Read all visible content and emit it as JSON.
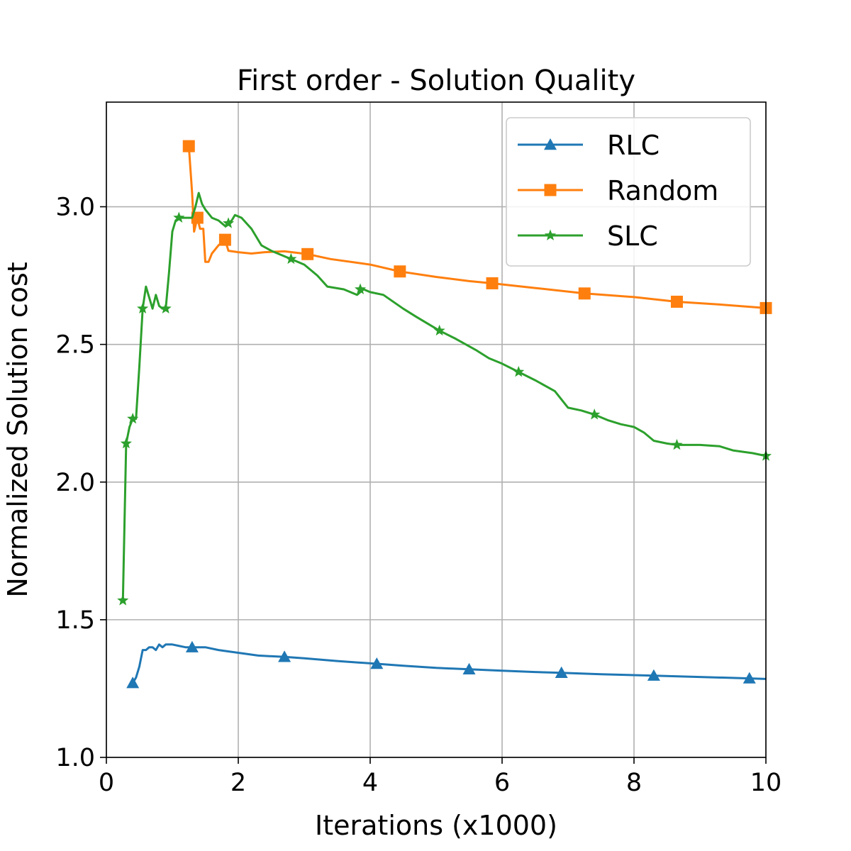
{
  "chart_data": {
    "type": "line",
    "title": "First order - Solution Quality",
    "xlabel": "Iterations (x1000)",
    "ylabel": "Normalized Solution cost",
    "xlim": [
      0,
      10
    ],
    "ylim": [
      1.0,
      3.38
    ],
    "xticks": [
      0,
      2,
      4,
      6,
      8,
      10
    ],
    "xtick_labels": [
      "0",
      "2",
      "4",
      "6",
      "8",
      "10"
    ],
    "yticks": [
      1.0,
      1.5,
      2.0,
      2.5,
      3.0
    ],
    "ytick_labels": [
      "1.0",
      "1.5",
      "2.0",
      "2.5",
      "3.0"
    ],
    "grid": true,
    "legend_position": "top-right",
    "series": [
      {
        "name": "RLC",
        "color": "#1f77b4",
        "marker": "triangle",
        "points": [
          [
            0.4,
            1.27
          ],
          [
            0.45,
            1.29
          ],
          [
            0.5,
            1.33
          ],
          [
            0.55,
            1.39
          ],
          [
            0.6,
            1.39
          ],
          [
            0.65,
            1.4
          ],
          [
            0.7,
            1.4
          ],
          [
            0.75,
            1.39
          ],
          [
            0.8,
            1.41
          ],
          [
            0.85,
            1.4
          ],
          [
            0.9,
            1.41
          ],
          [
            1.0,
            1.41
          ],
          [
            1.2,
            1.4
          ],
          [
            1.3,
            1.4
          ],
          [
            1.5,
            1.4
          ],
          [
            1.7,
            1.39
          ],
          [
            2.0,
            1.38
          ],
          [
            2.3,
            1.37
          ],
          [
            2.7,
            1.365
          ],
          [
            3.0,
            1.36
          ],
          [
            3.5,
            1.35
          ],
          [
            4.1,
            1.34
          ],
          [
            4.5,
            1.333
          ],
          [
            5.0,
            1.325
          ],
          [
            5.5,
            1.32
          ],
          [
            6.0,
            1.315
          ],
          [
            6.5,
            1.31
          ],
          [
            6.9,
            1.307
          ],
          [
            7.5,
            1.302
          ],
          [
            8.3,
            1.297
          ],
          [
            9.0,
            1.292
          ],
          [
            9.75,
            1.287
          ],
          [
            10.0,
            1.285
          ]
        ],
        "markers": [
          [
            0.4,
            1.27
          ],
          [
            1.3,
            1.4
          ],
          [
            2.7,
            1.365
          ],
          [
            4.1,
            1.34
          ],
          [
            5.5,
            1.32
          ],
          [
            6.9,
            1.307
          ],
          [
            8.3,
            1.297
          ],
          [
            9.75,
            1.287
          ]
        ]
      },
      {
        "name": "Random",
        "color": "#ff7f0e",
        "marker": "square",
        "points": [
          [
            1.25,
            3.22
          ],
          [
            1.3,
            3.05
          ],
          [
            1.33,
            2.91
          ],
          [
            1.38,
            2.96
          ],
          [
            1.42,
            2.92
          ],
          [
            1.47,
            2.92
          ],
          [
            1.5,
            2.8
          ],
          [
            1.55,
            2.8
          ],
          [
            1.6,
            2.83
          ],
          [
            1.7,
            2.86
          ],
          [
            1.8,
            2.88
          ],
          [
            1.85,
            2.84
          ],
          [
            2.0,
            2.835
          ],
          [
            2.2,
            2.83
          ],
          [
            2.4,
            2.835
          ],
          [
            2.7,
            2.838
          ],
          [
            3.05,
            2.828
          ],
          [
            3.4,
            2.81
          ],
          [
            4.0,
            2.79
          ],
          [
            4.45,
            2.765
          ],
          [
            5.0,
            2.745
          ],
          [
            5.5,
            2.73
          ],
          [
            5.85,
            2.722
          ],
          [
            6.5,
            2.705
          ],
          [
            7.25,
            2.685
          ],
          [
            8.0,
            2.672
          ],
          [
            8.65,
            2.655
          ],
          [
            9.3,
            2.645
          ],
          [
            10.0,
            2.632
          ]
        ],
        "markers": [
          [
            1.25,
            3.22
          ],
          [
            1.38,
            2.96
          ],
          [
            1.8,
            2.88
          ],
          [
            3.05,
            2.828
          ],
          [
            4.45,
            2.765
          ],
          [
            5.85,
            2.722
          ],
          [
            7.25,
            2.685
          ],
          [
            8.65,
            2.655
          ],
          [
            10.0,
            2.632
          ]
        ]
      },
      {
        "name": "SLC",
        "color": "#2ca02c",
        "marker": "star",
        "points": [
          [
            0.25,
            1.57
          ],
          [
            0.3,
            2.14
          ],
          [
            0.35,
            2.2
          ],
          [
            0.4,
            2.23
          ],
          [
            0.45,
            2.23
          ],
          [
            0.5,
            2.42
          ],
          [
            0.55,
            2.63
          ],
          [
            0.6,
            2.71
          ],
          [
            0.65,
            2.67
          ],
          [
            0.7,
            2.63
          ],
          [
            0.75,
            2.68
          ],
          [
            0.8,
            2.64
          ],
          [
            0.85,
            2.63
          ],
          [
            0.9,
            2.63
          ],
          [
            0.95,
            2.76
          ],
          [
            1.0,
            2.91
          ],
          [
            1.05,
            2.95
          ],
          [
            1.1,
            2.96
          ],
          [
            1.2,
            2.96
          ],
          [
            1.3,
            2.96
          ],
          [
            1.35,
            3.0
          ],
          [
            1.4,
            3.05
          ],
          [
            1.45,
            3.01
          ],
          [
            1.5,
            2.99
          ],
          [
            1.6,
            2.96
          ],
          [
            1.7,
            2.95
          ],
          [
            1.8,
            2.93
          ],
          [
            1.85,
            2.94
          ],
          [
            1.9,
            2.95
          ],
          [
            1.95,
            2.97
          ],
          [
            2.05,
            2.96
          ],
          [
            2.2,
            2.92
          ],
          [
            2.35,
            2.86
          ],
          [
            2.5,
            2.84
          ],
          [
            2.6,
            2.83
          ],
          [
            2.8,
            2.81
          ],
          [
            3.0,
            2.79
          ],
          [
            3.2,
            2.75
          ],
          [
            3.35,
            2.71
          ],
          [
            3.6,
            2.7
          ],
          [
            3.7,
            2.69
          ],
          [
            3.8,
            2.68
          ],
          [
            3.9,
            2.7
          ],
          [
            4.0,
            2.69
          ],
          [
            4.2,
            2.68
          ],
          [
            4.5,
            2.63
          ],
          [
            4.7,
            2.6
          ],
          [
            5.05,
            2.55
          ],
          [
            5.3,
            2.52
          ],
          [
            5.6,
            2.48
          ],
          [
            5.8,
            2.45
          ],
          [
            6.0,
            2.43
          ],
          [
            6.25,
            2.4
          ],
          [
            6.5,
            2.37
          ],
          [
            6.8,
            2.33
          ],
          [
            7.0,
            2.27
          ],
          [
            7.2,
            2.26
          ],
          [
            7.4,
            2.245
          ],
          [
            7.6,
            2.225
          ],
          [
            7.8,
            2.21
          ],
          [
            8.0,
            2.2
          ],
          [
            8.15,
            2.18
          ],
          [
            8.3,
            2.15
          ],
          [
            8.5,
            2.14
          ],
          [
            8.65,
            2.135
          ],
          [
            9.0,
            2.135
          ],
          [
            9.3,
            2.13
          ],
          [
            9.5,
            2.115
          ],
          [
            9.8,
            2.105
          ],
          [
            10.0,
            2.095
          ]
        ],
        "markers": [
          [
            0.25,
            1.57
          ],
          [
            0.3,
            2.14
          ],
          [
            0.4,
            2.23
          ],
          [
            0.55,
            2.63
          ],
          [
            0.9,
            2.63
          ],
          [
            1.1,
            2.96
          ],
          [
            1.85,
            2.94
          ],
          [
            2.8,
            2.81
          ],
          [
            3.85,
            2.7
          ],
          [
            5.05,
            2.55
          ],
          [
            6.25,
            2.4
          ],
          [
            7.4,
            2.245
          ],
          [
            8.65,
            2.135
          ],
          [
            10.0,
            2.095
          ]
        ]
      }
    ]
  }
}
